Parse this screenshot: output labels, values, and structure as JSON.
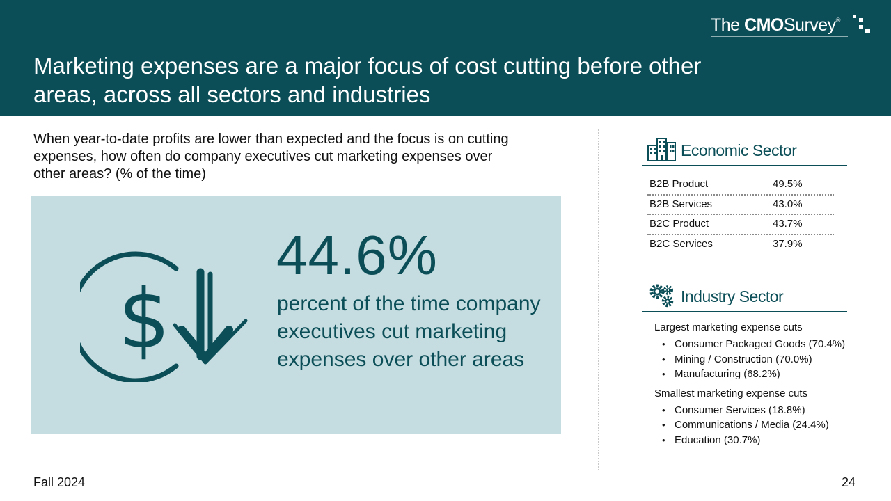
{
  "slide": {
    "title": "Marketing expenses are a major focus of cost cutting before other areas, across all sectors and industries",
    "logo": {
      "prefix": "The",
      "bold": "CMO",
      "suffix": "Survey",
      "registered": "®"
    },
    "question": "When year-to-date profits are lower than expected and the focus is on cutting expenses, how often do company executives cut marketing expenses over other areas? (% of the time)",
    "headline": {
      "value": "44.6%",
      "description": "percent of the time company executives cut marketing expenses over other areas",
      "icon": "dollar-down-arrow-icon"
    },
    "economic_sector": {
      "title": "Economic Sector",
      "icon": "buildings-icon",
      "rows": [
        {
          "label": "B2B Product",
          "value": "49.5%"
        },
        {
          "label": "B2B Services",
          "value": "43.0%"
        },
        {
          "label": "B2C Product",
          "value": "43.7%"
        },
        {
          "label": "B2C Services",
          "value": "37.9%"
        }
      ]
    },
    "industry_sector": {
      "title": "Industry Sector",
      "icon": "gears-icon",
      "largest": {
        "heading": "Largest marketing expense cuts",
        "items": [
          "Consumer Packaged Goods (70.4%)",
          "Mining / Construction (70.0%)",
          "Manufacturing (68.2%)"
        ]
      },
      "smallest": {
        "heading": "Smallest marketing expense cuts",
        "items": [
          "Consumer Services (18.8%)",
          "Communications / Media (24.4%)",
          "Education (30.7%)"
        ]
      }
    },
    "footer": {
      "left": "Fall 2024",
      "page": "24"
    },
    "colors": {
      "primary": "#0b4e57",
      "panel": "#c5dce0"
    }
  }
}
